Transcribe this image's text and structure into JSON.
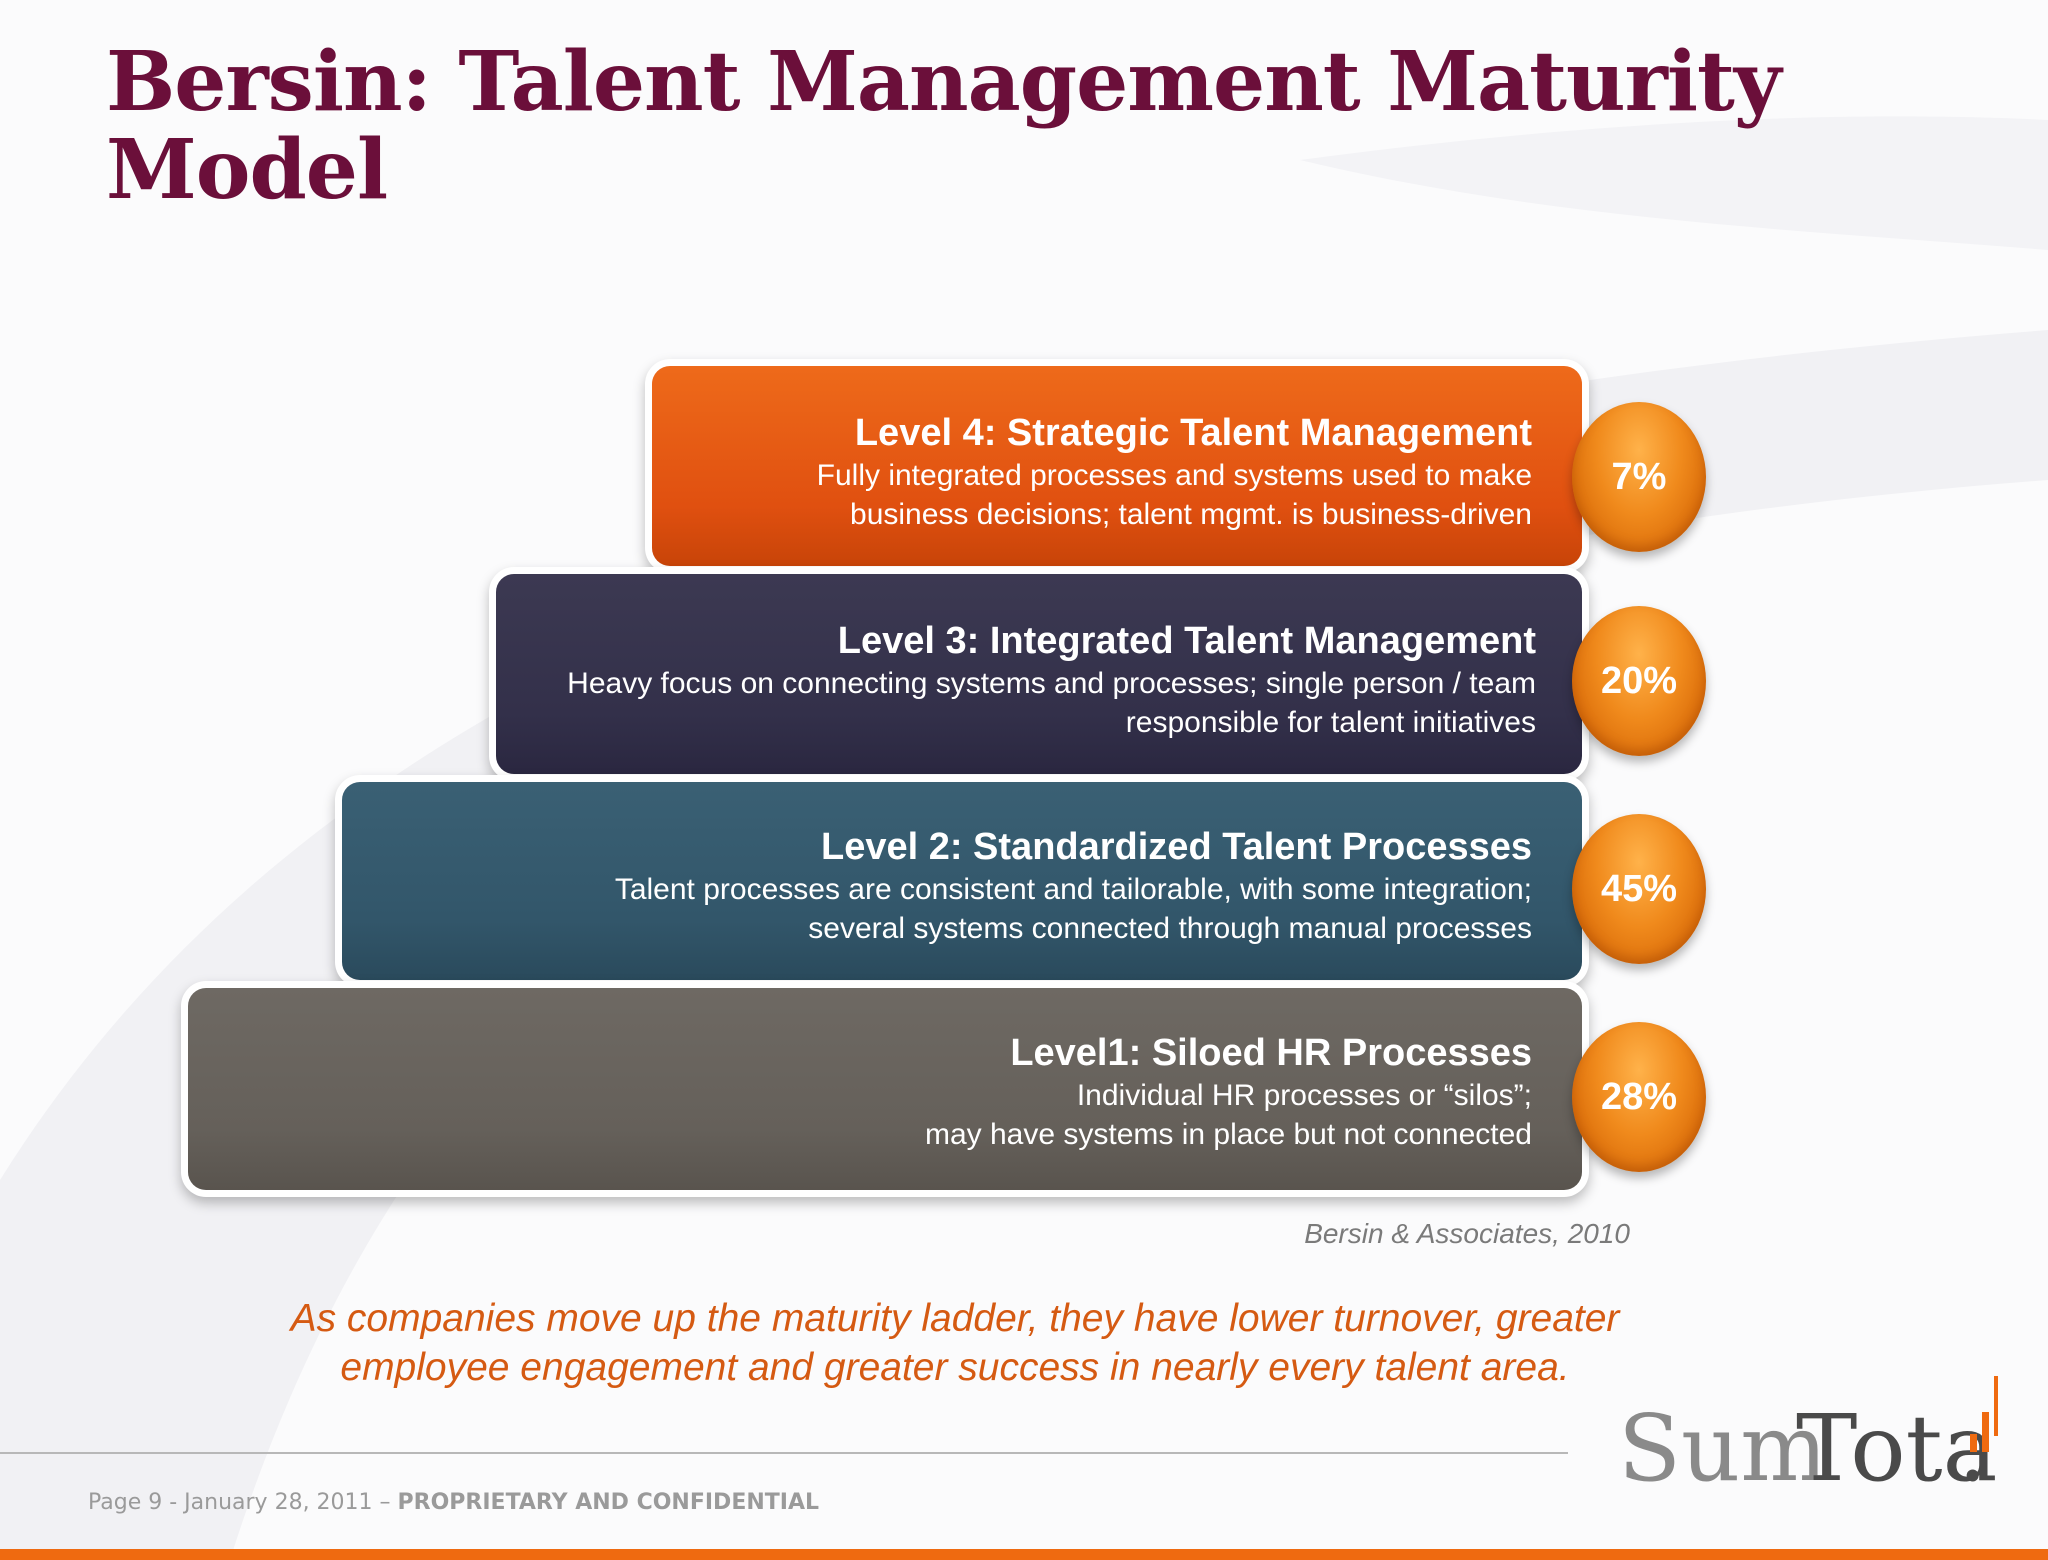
{
  "title": "Bersin: Talent Management Maturity Model",
  "levels": [
    {
      "heading": "Level 4: Strategic Talent Management",
      "desc_line1": "Fully integrated processes and systems used to make",
      "desc_line2": "business decisions; talent mgmt. is business-driven",
      "percent": "7%",
      "color": "#e25212"
    },
    {
      "heading": "Level 3: Integrated Talent Management",
      "desc_line1": "Heavy focus on connecting systems and processes; single person / team",
      "desc_line2": "responsible for talent initiatives",
      "percent": "20%",
      "color": "#353249"
    },
    {
      "heading": "Level 2: Standardized Talent Processes",
      "desc_line1": "Talent processes are consistent and tailorable, with some integration;",
      "desc_line2": "several systems connected through manual processes",
      "percent": "45%",
      "color": "#33566a"
    },
    {
      "heading": "Level1: Siloed HR Processes",
      "desc_line1": "Individual HR processes or “silos”;",
      "desc_line2": "may have systems in place but not connected",
      "percent": "28%",
      "color": "#66615b"
    }
  ],
  "source": "Bersin & Associates, 2010",
  "summary_line1": "As companies move up the maturity ladder, they have lower turnover, greater",
  "summary_line2": "employee engagement and greater success in nearly every talent area.",
  "footer": {
    "page_info": "Page 9 - January 28, 2011 – ",
    "confidential": "PROPRIETARY AND CONFIDENTIAL"
  },
  "logo": {
    "text_sum": "Sum",
    "text_total": "Total",
    "dot": "."
  },
  "colors": {
    "title": "#6b0f3a",
    "accent_orange": "#ef6a10",
    "summary": "#d55a12"
  }
}
